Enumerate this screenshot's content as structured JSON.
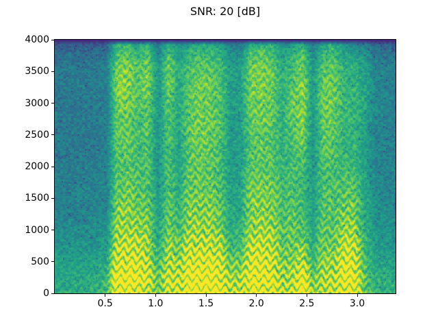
{
  "figure": {
    "title": "SNR: 20 [dB]",
    "background_color": "#ffffff",
    "text_color": "#000000"
  },
  "chart_data": {
    "type": "heatmap",
    "subtype": "spectrogram",
    "title": "SNR: 20 [dB]",
    "xlabel": "",
    "ylabel": "",
    "x_range": [
      0.0,
      3.38
    ],
    "y_range": [
      0,
      4000
    ],
    "x_ticks": [
      0.5,
      1.0,
      1.5,
      2.0,
      2.5,
      3.0
    ],
    "x_tick_labels": [
      "0.5",
      "1.0",
      "1.5",
      "2.0",
      "2.5",
      "3.0"
    ],
    "y_ticks": [
      0,
      500,
      1000,
      1500,
      2000,
      2500,
      3000,
      3500,
      4000
    ],
    "y_tick_labels": [
      "0",
      "500",
      "1000",
      "1500",
      "2000",
      "2500",
      "3000",
      "3500",
      "4000"
    ],
    "grid": false,
    "legend": false,
    "colormap": "viridis",
    "colormap_stops": [
      "#440154",
      "#482878",
      "#3e4989",
      "#31688e",
      "#26828e",
      "#1f9e89",
      "#35b779",
      "#6ece58",
      "#b5de2b",
      "#fde725"
    ],
    "value_scale": "relative log-power intensity, 0 = darkest (min) to 9+ = yellow (max)",
    "time_bin_seconds": 0.1,
    "freq_bin_hz": 200,
    "row_order": "each column lists 20 frequency bins from top (3800-4000 Hz) down to bottom (0-200 Hz)",
    "columns_time_major": [
      [
        2.3,
        3.1,
        3.6,
        3.6,
        3.6,
        3.6,
        3.6,
        3.6,
        3.6,
        3.6,
        3.8,
        3.8,
        3.8,
        3.8,
        4.2,
        4.2,
        4.5,
        4.8,
        5.0,
        5.2
      ],
      [
        2.3,
        3.1,
        3.6,
        3.6,
        3.6,
        3.6,
        3.6,
        3.6,
        3.6,
        3.6,
        3.8,
        3.8,
        3.8,
        3.8,
        4.2,
        4.3,
        4.6,
        4.9,
        5.1,
        5.3
      ],
      [
        2.3,
        3.1,
        3.6,
        3.6,
        3.6,
        3.6,
        3.6,
        3.6,
        3.6,
        3.6,
        3.8,
        3.8,
        3.9,
        3.9,
        4.2,
        4.3,
        4.6,
        4.9,
        5.2,
        5.3
      ],
      [
        2.3,
        3.1,
        3.6,
        3.6,
        3.6,
        3.6,
        3.6,
        3.6,
        3.6,
        3.7,
        3.8,
        3.9,
        3.9,
        4.0,
        4.3,
        4.4,
        4.7,
        5.0,
        5.3,
        5.4
      ],
      [
        2.4,
        3.2,
        3.7,
        3.7,
        3.7,
        3.7,
        3.6,
        3.6,
        3.7,
        3.7,
        3.9,
        3.9,
        4.0,
        4.0,
        4.3,
        4.4,
        4.7,
        5.0,
        5.3,
        5.4
      ],
      [
        2.5,
        3.3,
        3.8,
        3.8,
        3.8,
        3.8,
        3.8,
        3.8,
        3.8,
        3.8,
        4.0,
        4.0,
        4.0,
        4.1,
        4.4,
        4.6,
        5.0,
        5.2,
        5.6,
        5.8
      ],
      [
        5.3,
        6.1,
        6.6,
        6.8,
        6.8,
        6.6,
        6.4,
        6.4,
        6.3,
        6.2,
        6.2,
        6.4,
        6.6,
        6.8,
        7.0,
        7.4,
        7.8,
        8.4,
        9.0,
        8.8
      ],
      [
        5.5,
        6.3,
        6.8,
        7.0,
        6.9,
        6.7,
        6.5,
        6.4,
        6.3,
        6.2,
        6.3,
        6.5,
        6.8,
        7.0,
        7.2,
        7.6,
        8.0,
        8.6,
        9.2,
        8.6
      ],
      [
        4.7,
        5.5,
        6.0,
        6.2,
        6.2,
        6.1,
        6.0,
        6.0,
        5.9,
        5.9,
        6.0,
        6.2,
        6.4,
        6.6,
        6.9,
        7.3,
        7.8,
        8.4,
        9.0,
        8.4
      ],
      [
        5.3,
        6.1,
        6.6,
        6.7,
        6.6,
        6.4,
        6.3,
        6.2,
        6.1,
        6.0,
        6.0,
        6.1,
        6.3,
        6.5,
        6.7,
        7.0,
        7.4,
        7.8,
        8.2,
        7.6
      ],
      [
        3.3,
        4.1,
        4.6,
        4.7,
        4.7,
        4.6,
        4.6,
        4.5,
        4.5,
        4.5,
        4.6,
        4.7,
        4.8,
        4.9,
        5.0,
        5.2,
        5.5,
        5.8,
        6.2,
        6.4
      ],
      [
        5.1,
        5.9,
        6.4,
        6.5,
        6.4,
        6.3,
        6.2,
        6.1,
        6.0,
        6.0,
        6.0,
        6.1,
        6.2,
        6.4,
        6.6,
        6.9,
        7.2,
        7.6,
        8.0,
        7.8
      ],
      [
        3.9,
        4.7,
        5.2,
        5.3,
        5.3,
        5.2,
        5.1,
        5.1,
        5.0,
        5.0,
        5.1,
        5.2,
        5.4,
        5.6,
        5.8,
        6.2,
        6.6,
        7.2,
        7.8,
        8.0
      ],
      [
        4.7,
        5.5,
        6.0,
        6.1,
        6.2,
        6.2,
        6.3,
        6.4,
        6.4,
        6.3,
        6.3,
        6.4,
        6.6,
        6.8,
        7.0,
        7.4,
        7.9,
        8.5,
        9.0,
        9.2
      ],
      [
        5.0,
        5.8,
        6.3,
        6.5,
        6.6,
        6.6,
        6.6,
        6.6,
        6.5,
        6.4,
        6.4,
        6.5,
        6.7,
        6.9,
        7.1,
        7.5,
        8.0,
        8.6,
        9.1,
        9.3
      ],
      [
        4.9,
        5.7,
        6.2,
        6.4,
        6.5,
        6.5,
        6.5,
        6.5,
        6.4,
        6.3,
        6.3,
        6.4,
        6.6,
        6.8,
        7.0,
        7.4,
        7.9,
        8.5,
        9.0,
        9.2
      ],
      [
        4.6,
        5.4,
        5.9,
        6.0,
        6.1,
        6.1,
        6.1,
        6.1,
        6.0,
        6.0,
        6.0,
        6.1,
        6.3,
        6.5,
        6.7,
        7.1,
        7.6,
        8.2,
        8.7,
        8.9
      ],
      [
        3.4,
        4.2,
        4.7,
        4.8,
        4.8,
        4.8,
        4.7,
        4.7,
        4.7,
        4.7,
        4.8,
        4.9,
        5.0,
        5.1,
        5.3,
        5.6,
        6.0,
        6.5,
        7.2,
        7.8
      ],
      [
        3.5,
        4.3,
        4.8,
        4.9,
        4.9,
        4.9,
        4.8,
        4.8,
        4.8,
        4.8,
        4.9,
        5.0,
        5.1,
        5.2,
        5.4,
        5.7,
        6.1,
        6.6,
        7.3,
        7.9
      ],
      [
        5.2,
        6.0,
        6.5,
        6.6,
        6.6,
        6.5,
        6.4,
        6.3,
        6.2,
        6.2,
        6.3,
        6.5,
        6.7,
        6.9,
        7.1,
        7.5,
        7.9,
        8.4,
        8.9,
        8.7
      ],
      [
        5.3,
        6.1,
        6.6,
        6.7,
        6.7,
        6.6,
        6.5,
        6.4,
        6.3,
        6.3,
        6.4,
        6.6,
        6.8,
        7.0,
        7.2,
        7.6,
        8.0,
        8.5,
        9.0,
        8.8
      ],
      [
        5.1,
        5.9,
        6.4,
        6.5,
        6.5,
        6.4,
        6.3,
        6.2,
        6.2,
        6.2,
        6.3,
        6.4,
        6.6,
        6.8,
        7.0,
        7.3,
        7.7,
        8.1,
        8.6,
        8.4
      ],
      [
        4.1,
        4.9,
        5.4,
        5.5,
        5.5,
        5.5,
        5.4,
        5.4,
        5.4,
        5.5,
        5.6,
        5.8,
        6.0,
        6.1,
        6.2,
        6.3,
        6.5,
        6.8,
        7.2,
        7.4
      ],
      [
        4.5,
        5.3,
        5.8,
        6.0,
        6.2,
        6.3,
        6.3,
        6.2,
        6.0,
        5.9,
        5.9,
        6.0,
        6.1,
        6.2,
        6.3,
        6.4,
        6.6,
        7.0,
        7.5,
        7.7
      ],
      [
        5.3,
        6.1,
        6.6,
        6.9,
        7.0,
        7.0,
        6.9,
        6.7,
        6.4,
        6.1,
        5.9,
        5.8,
        5.8,
        5.9,
        6.1,
        6.5,
        7.2,
        8.2,
        9.2,
        9.0
      ],
      [
        3.3,
        4.1,
        4.6,
        4.7,
        4.7,
        4.7,
        4.6,
        4.6,
        4.5,
        4.5,
        4.6,
        4.7,
        4.8,
        4.9,
        5.0,
        5.2,
        5.5,
        6.0,
        6.5,
        6.7
      ],
      [
        4.9,
        5.7,
        6.2,
        6.4,
        6.5,
        6.5,
        6.4,
        6.3,
        6.2,
        6.1,
        6.0,
        6.0,
        6.1,
        6.2,
        6.3,
        6.5,
        6.8,
        7.2,
        7.7,
        7.5
      ],
      [
        5.0,
        5.8,
        6.3,
        6.5,
        6.6,
        6.5,
        6.4,
        6.3,
        6.1,
        6.0,
        5.9,
        5.9,
        6.0,
        6.1,
        6.2,
        6.4,
        6.7,
        7.1,
        7.6,
        7.4
      ],
      [
        4.1,
        4.9,
        5.4,
        5.6,
        5.7,
        5.7,
        5.6,
        5.5,
        5.5,
        5.6,
        5.8,
        6.0,
        6.3,
        6.6,
        7.0,
        7.4,
        7.9,
        8.5,
        9.0,
        8.8
      ],
      [
        4.0,
        4.8,
        5.3,
        5.4,
        5.5,
        5.5,
        5.5,
        5.6,
        5.6,
        5.7,
        5.9,
        6.2,
        6.5,
        6.8,
        7.1,
        7.5,
        7.9,
        8.4,
        8.8,
        8.6
      ],
      [
        3.6,
        4.4,
        4.9,
        5.0,
        5.1,
        5.1,
        5.0,
        5.0,
        4.9,
        4.9,
        5.0,
        5.1,
        5.2,
        5.3,
        5.4,
        5.6,
        5.9,
        6.2,
        6.4,
        6.2
      ],
      [
        2.7,
        3.5,
        4.0,
        4.1,
        4.1,
        4.1,
        4.0,
        4.0,
        4.0,
        4.0,
        4.1,
        4.2,
        4.3,
        4.4,
        4.5,
        4.7,
        4.9,
        5.2,
        5.4,
        5.5
      ],
      [
        2.6,
        3.4,
        3.9,
        3.9,
        3.9,
        3.9,
        3.9,
        3.9,
        3.9,
        3.9,
        4.0,
        4.0,
        4.1,
        4.2,
        4.3,
        4.5,
        4.7,
        5.0,
        5.3,
        5.4
      ],
      [
        2.5,
        3.3,
        3.8,
        3.8,
        3.8,
        3.8,
        3.8,
        3.8,
        3.8,
        3.8,
        3.9,
        3.9,
        4.0,
        4.1,
        4.2,
        4.4,
        4.6,
        4.9,
        5.2,
        5.4
      ]
    ]
  }
}
